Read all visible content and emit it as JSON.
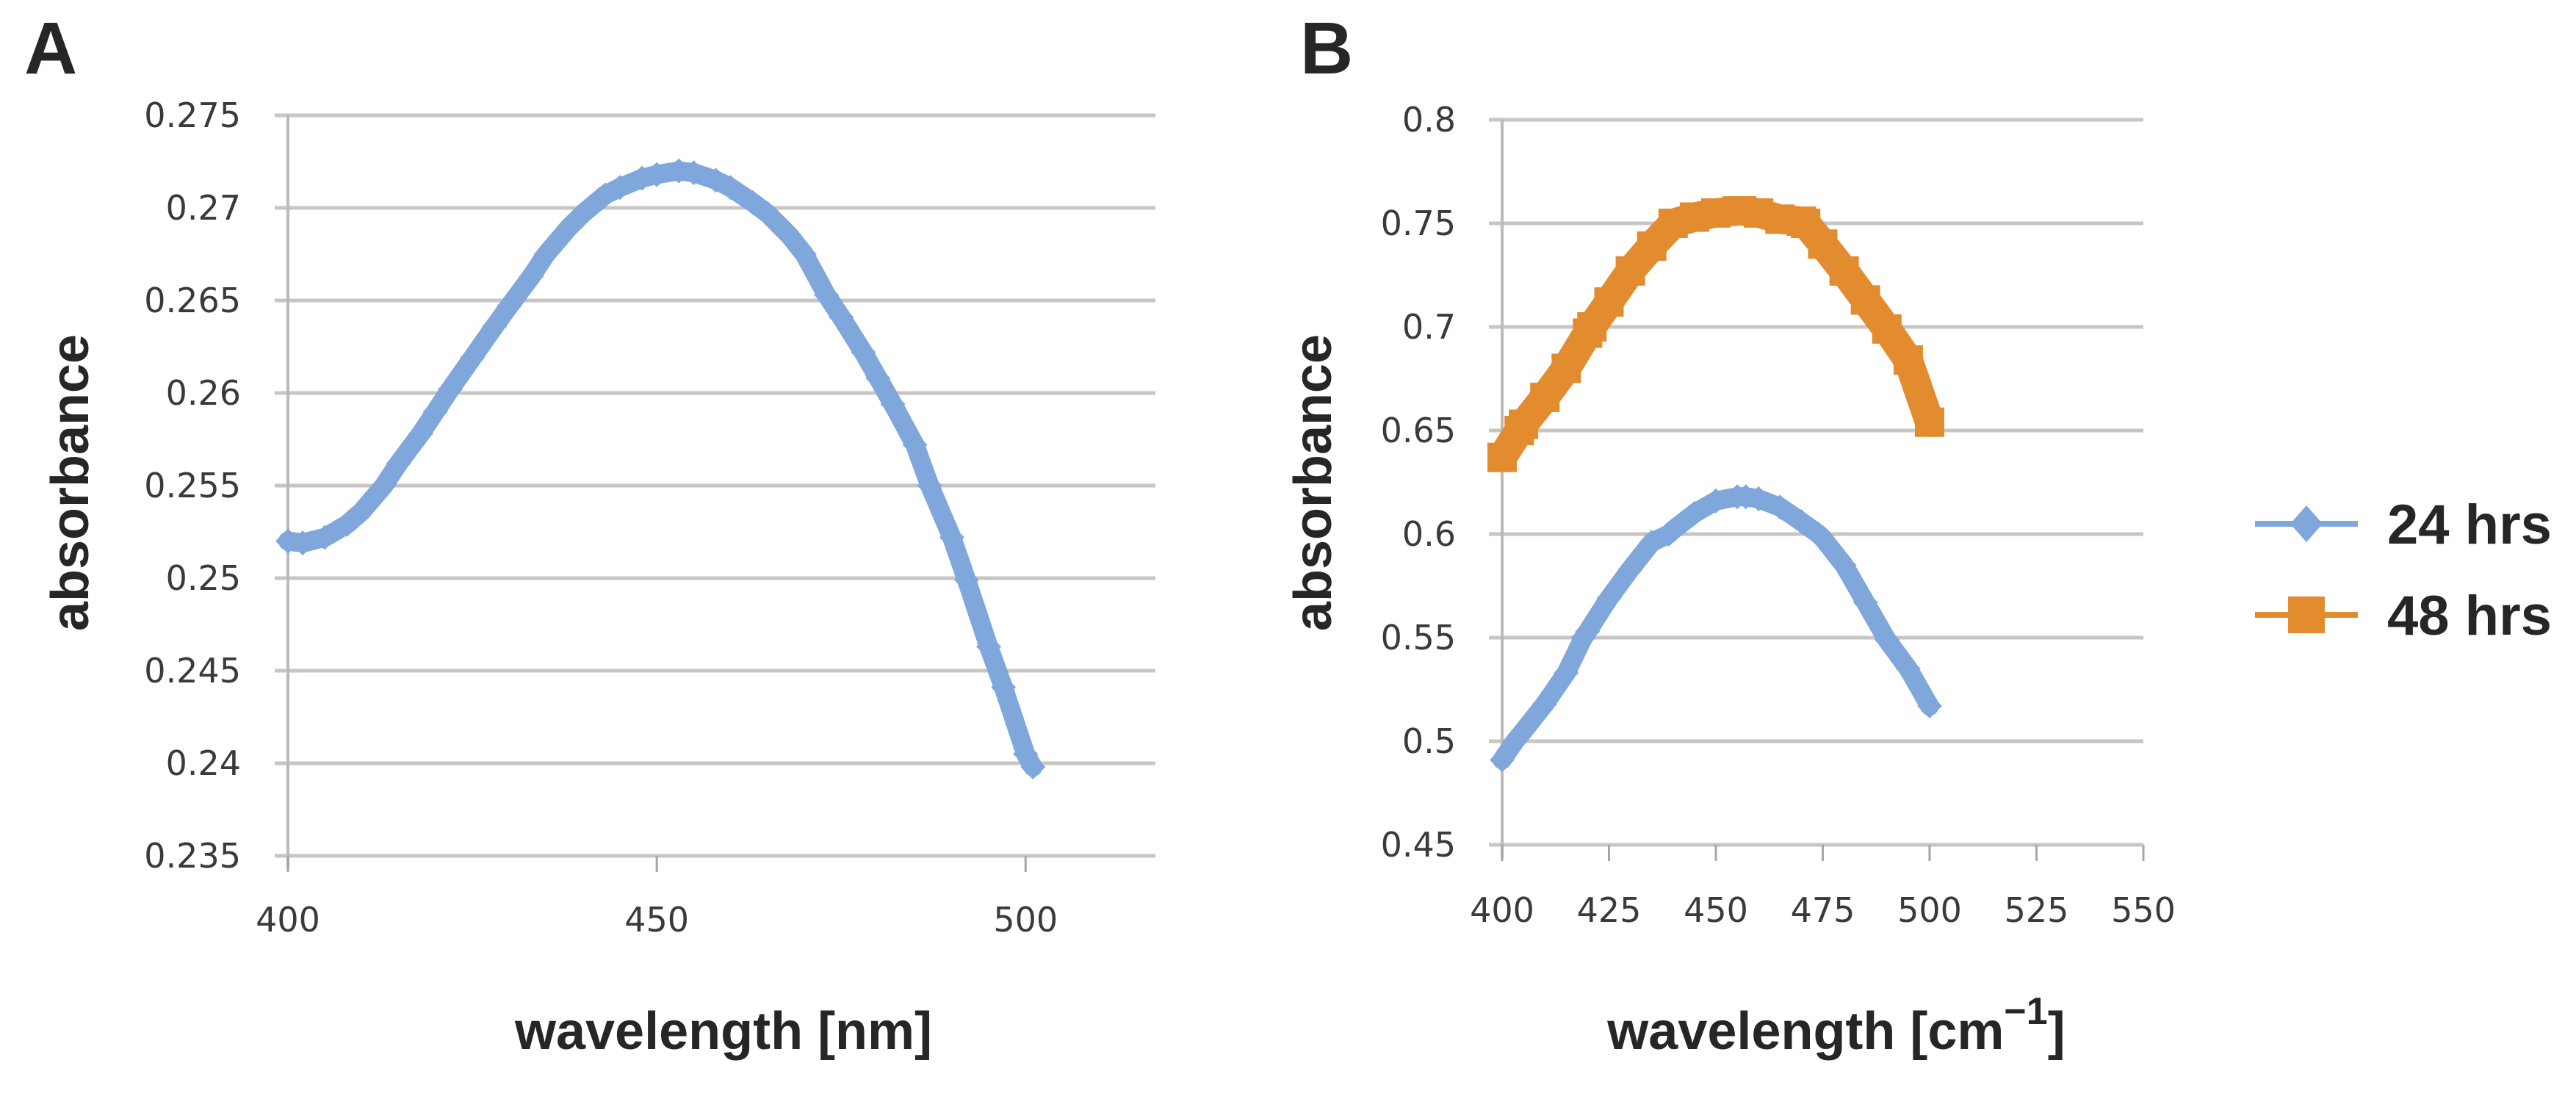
{
  "figure": {
    "panels": [
      "A",
      "B"
    ]
  },
  "chart_data": [
    {
      "panel": "A",
      "type": "line",
      "title": "",
      "xlabel": "wavelength [nm]",
      "ylabel": "absorbance",
      "xlim": [
        400,
        517.6
      ],
      "ylim": [
        0.235,
        0.275
      ],
      "xticks": [
        400,
        450,
        500
      ],
      "xtick_labels": [
        "400",
        "450",
        "500"
      ],
      "yticks": [
        0.235,
        0.24,
        0.245,
        0.25,
        0.255,
        0.26,
        0.265,
        0.27,
        0.275
      ],
      "ytick_labels": [
        "0.235",
        "0.24",
        "0.245",
        "0.25",
        "0.255",
        "0.26",
        "0.265",
        "0.27",
        "0.275"
      ],
      "grid": "horizontal",
      "legend": null,
      "series": [
        {
          "name": "absorbance",
          "color": "#7fa7dc",
          "marker": "diamond",
          "x": [
            400,
            402,
            405,
            408,
            410,
            413,
            415,
            418,
            420,
            422,
            425,
            428,
            430,
            433,
            435,
            438,
            440,
            443,
            445,
            448,
            450,
            453,
            455,
            458,
            460,
            463,
            465,
            468,
            470,
            473,
            475,
            478,
            480,
            482,
            485,
            487,
            490,
            492,
            495,
            497,
            500,
            501
          ],
          "y": [
            0.252,
            0.2519,
            0.2522,
            0.2529,
            0.2536,
            0.255,
            0.2562,
            0.2578,
            0.259,
            0.2602,
            0.2619,
            0.2636,
            0.2647,
            0.2663,
            0.2675,
            0.2689,
            0.2697,
            0.2707,
            0.2711,
            0.2716,
            0.2718,
            0.272,
            0.2719,
            0.2715,
            0.2711,
            0.2703,
            0.2697,
            0.2685,
            0.2675,
            0.2653,
            0.2641,
            0.2622,
            0.2608,
            0.2594,
            0.2572,
            0.255,
            0.2522,
            0.2499,
            0.2463,
            0.2441,
            0.2405,
            0.2398
          ]
        }
      ]
    },
    {
      "panel": "B",
      "type": "line",
      "title": "",
      "xlabel": "wavelength [cm",
      "xlabel_superscript": "−1",
      "xlabel_suffix": "]",
      "ylabel": "absorbance",
      "xlim": [
        400,
        550
      ],
      "ylim": [
        0.45,
        0.8
      ],
      "xticks": [
        400,
        425,
        450,
        475,
        500,
        525,
        550
      ],
      "xtick_labels": [
        "400",
        "425",
        "450",
        "475",
        "500",
        "525",
        "550"
      ],
      "yticks": [
        0.45,
        0.5,
        0.55,
        0.6,
        0.65,
        0.7,
        0.75,
        0.8
      ],
      "ytick_labels": [
        "0.45",
        "0.5",
        "0.55",
        "0.6",
        "0.65",
        "0.7",
        "0.75",
        "0.8"
      ],
      "grid": "horizontal",
      "legend": "right",
      "series": [
        {
          "name": "24 hrs",
          "color": "#7fa7dc",
          "marker": "diamond",
          "x": [
            400,
            403,
            405,
            410,
            415,
            419,
            420,
            425,
            430,
            435,
            439,
            440,
            445,
            450,
            455,
            457,
            460,
            465,
            470,
            474,
            475,
            480,
            485,
            490,
            495,
            500
          ],
          "y": [
            0.491,
            0.5,
            0.505,
            0.518,
            0.533,
            0.55,
            0.553,
            0.569,
            0.583,
            0.596,
            0.6,
            0.602,
            0.61,
            0.616,
            0.618,
            0.618,
            0.617,
            0.613,
            0.606,
            0.6,
            0.598,
            0.585,
            0.567,
            0.549,
            0.535,
            0.517
          ]
        },
        {
          "name": "48 hrs",
          "color": "#e38b2f",
          "marker": "square",
          "x": [
            400,
            404,
            405,
            410,
            415,
            420,
            421,
            425,
            430,
            435,
            440,
            445,
            450,
            455,
            456,
            460,
            465,
            470,
            471,
            475,
            480,
            485,
            490,
            495,
            500
          ],
          "y": [
            0.637,
            0.65,
            0.653,
            0.666,
            0.68,
            0.697,
            0.7,
            0.712,
            0.727,
            0.739,
            0.75,
            0.753,
            0.755,
            0.756,
            0.756,
            0.755,
            0.752,
            0.751,
            0.75,
            0.74,
            0.727,
            0.713,
            0.699,
            0.684,
            0.654
          ]
        }
      ]
    }
  ]
}
